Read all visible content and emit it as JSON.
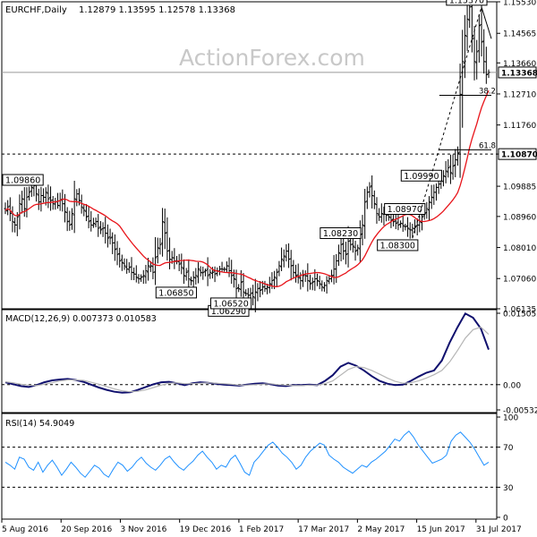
{
  "header": {
    "symbol": "EURCHF,Daily",
    "ohlc": "1.12879 1.13595 1.12578 1.13368",
    "watermark": "ActionForex.com"
  },
  "colors": {
    "bg": "#ffffff",
    "axis": "#000000",
    "price_bars": "#000000",
    "ma": "#e8141a",
    "macd_main": "#10106e",
    "macd_signal": "#b5b5b5",
    "rsi": "#1e90ff",
    "grid_dash": "#000000",
    "label_bg": "#ffffff"
  },
  "chart_data": [
    {
      "type": "line",
      "title": "EURCHF,Daily",
      "subtitle": "1.12879 1.13595 1.12578 1.13368",
      "x_ticks": [
        "5 Aug 2016",
        "20 Sep 2016",
        "3 Nov 2016",
        "19 Dec 2016",
        "1 Feb 2017",
        "17 Mar 2017",
        "2 May 2017",
        "15 Jun 2017",
        "31 Jul 2017"
      ],
      "y_ticks": [
        "1.15530",
        "1.14565",
        "1.13660",
        "1.12710",
        "1.11760",
        "1.10870",
        "1.09885",
        "1.08960",
        "1.08010",
        "1.07060",
        "1.06135"
      ],
      "ylim": [
        1.06135,
        1.1553
      ],
      "last_price_label": "1.13368",
      "level_label": "1.10870",
      "grid": false,
      "series": [
        {
          "kind": "ohlc-bars",
          "close": [
            1.0915,
            1.0925,
            1.0905,
            1.088,
            1.087,
            1.0895,
            1.0935,
            1.095,
            1.092,
            1.0955,
            1.097,
            1.0985,
            1.099,
            1.0965,
            1.094,
            1.096,
            1.0955,
            1.097,
            1.095,
            1.0945,
            1.0935,
            1.094,
            1.093,
            1.0945,
            1.0935,
            1.091,
            1.088,
            1.087,
            1.0905,
            1.095,
            1.0965,
            1.0945,
            1.0925,
            1.0915,
            1.0895,
            1.088,
            1.087,
            1.0875,
            1.088,
            1.086,
            1.0855,
            1.086,
            1.0845,
            1.083,
            1.083,
            1.0815,
            1.0795,
            1.078,
            1.076,
            1.0755,
            1.0745,
            1.0735,
            1.074,
            1.0725,
            1.072,
            1.071,
            1.0705,
            1.071,
            1.0715,
            1.073,
            1.0745,
            1.0745,
            1.0725,
            1.077,
            1.08,
            1.081,
            1.088,
            1.0845,
            1.079,
            1.0765,
            1.077,
            1.076,
            1.076,
            1.075,
            1.074,
            1.0715,
            1.0725,
            1.0705,
            1.07,
            1.071,
            1.0715,
            1.0735,
            1.0725,
            1.0725,
            1.073,
            1.0715,
            1.0725,
            1.0725,
            1.072,
            1.073,
            1.0735,
            1.0735,
            1.0735,
            1.0745,
            1.073,
            1.0715,
            1.0705,
            1.0675,
            1.0675,
            1.0695,
            1.0665,
            1.066,
            1.0655,
            1.066,
            1.065,
            1.0665,
            1.0675,
            1.067,
            1.068,
            1.0675,
            1.068,
            1.069,
            1.07,
            1.071,
            1.0725,
            1.0745,
            1.0765,
            1.0775,
            1.079,
            1.0765,
            1.0745,
            1.0725,
            1.0715,
            1.071,
            1.07,
            1.0715,
            1.0715,
            1.07,
            1.069,
            1.0695,
            1.0705,
            1.07,
            1.069,
            1.068,
            1.0685,
            1.07,
            1.0705,
            1.0715,
            1.0735,
            1.076,
            1.0785,
            1.081,
            1.079,
            1.078,
            1.082,
            1.081,
            1.0805,
            1.079,
            1.08,
            1.084,
            1.087,
            1.094,
            1.097,
            1.0986,
            1.096,
            1.0935,
            1.0905,
            1.0895,
            1.0905,
            1.091,
            1.09,
            1.0895,
            1.0885,
            1.088,
            1.0875,
            1.087,
            1.0875,
            1.0868,
            1.0865,
            1.086,
            1.0855,
            1.086,
            1.0865,
            1.087,
            1.088,
            1.0895,
            1.0905,
            1.092,
            1.094,
            1.0955,
            1.097,
            1.0985,
            1.0995,
            1.1005,
            1.102,
            1.1035,
            1.1045,
            1.103,
            1.105,
            1.107,
            1.109,
            1.127,
            1.137,
            1.145,
            1.15,
            1.1537,
            1.144,
            1.137,
            1.14,
            1.148,
            1.143,
            1.137,
            1.133,
            1.1337
          ]
        },
        {
          "kind": "moving-average"
        }
      ],
      "annotations": [
        {
          "label": "1.15370",
          "type": "high"
        },
        {
          "label": "1.09990",
          "type": "high"
        },
        {
          "label": "1.08970",
          "type": "high"
        },
        {
          "label": "1.08230",
          "type": "high"
        },
        {
          "label": "1.09860",
          "type": "high"
        },
        {
          "label": "1.06850",
          "type": "low"
        },
        {
          "label": "1.06290",
          "type": "low"
        },
        {
          "label": "1.06520",
          "type": "low"
        },
        {
          "label": "1.08300",
          "type": "low"
        },
        {
          "label": "38.2",
          "type": "fib"
        },
        {
          "label": "61.8",
          "type": "fib"
        }
      ]
    },
    {
      "type": "line",
      "title": "MACD(12,26,9) 0.007373 0.010583",
      "y_ticks": [
        "0.015052",
        "0.00",
        "-0.005321"
      ],
      "ylim": [
        -0.005321,
        0.015052
      ],
      "series": [
        {
          "kind": "macd",
          "values": [
            0.0005,
            0.0001,
            -0.0003,
            -0.0005,
            -0.0001,
            0.0005,
            0.0009,
            0.0011,
            0.0012,
            0.001,
            0.0006,
            0.0,
            -0.0006,
            -0.0011,
            -0.0015,
            -0.0017,
            -0.0016,
            -0.0011,
            -0.0005,
            0.0001,
            0.0005,
            0.0006,
            0.0003,
            -0.0001,
            0.0003,
            0.0005,
            0.0004,
            0.0002,
            0.0,
            -0.0001,
            -0.0002,
            0.0,
            0.0002,
            0.0003,
            0.0001,
            -0.0002,
            -0.0003,
            -0.0001,
            -0.0001,
            0.0,
            -0.0001,
            0.0008,
            0.002,
            0.0038,
            0.0046,
            0.004,
            0.003,
            0.0018,
            0.0008,
            0.0002,
            -0.0001,
            0.0,
            0.0008,
            0.0017,
            0.0025,
            0.003,
            0.0051,
            0.0089,
            0.0121,
            0.015,
            0.0141,
            0.0118,
            0.0074
          ]
        },
        {
          "kind": "signal",
          "values": [
            0.0006,
            0.0004,
            0.0001,
            -0.0001,
            -0.0002,
            0.0001,
            0.0004,
            0.0008,
            0.001,
            0.001,
            0.0009,
            0.0005,
            0.0001,
            -0.0004,
            -0.0009,
            -0.0013,
            -0.0015,
            -0.0014,
            -0.0011,
            -0.0006,
            -0.0001,
            0.0003,
            0.0004,
            0.0002,
            0.0002,
            0.0003,
            0.0004,
            0.0003,
            0.0002,
            0.0001,
            -0.0001,
            -0.0001,
            0.0,
            0.0001,
            0.0002,
            0.0,
            -0.0001,
            -0.0002,
            -0.0002,
            -0.0001,
            -0.0001,
            0.0002,
            0.0008,
            0.002,
            0.0032,
            0.0038,
            0.0036,
            0.003,
            0.0022,
            0.0014,
            0.0007,
            0.0003,
            0.0004,
            0.0008,
            0.0014,
            0.0021,
            0.003,
            0.0048,
            0.0072,
            0.0098,
            0.0116,
            0.0121,
            0.0106
          ]
        }
      ]
    },
    {
      "type": "line",
      "title": "RSI(14) 54.9049",
      "y_ticks": [
        "100",
        "70",
        "30",
        "0"
      ],
      "ylim": [
        0,
        100
      ],
      "series": [
        {
          "kind": "rsi",
          "values": [
            55,
            52,
            48,
            60,
            58,
            50,
            47,
            55,
            45,
            52,
            57,
            50,
            42,
            48,
            55,
            50,
            44,
            40,
            46,
            52,
            49,
            43,
            40,
            48,
            55,
            52,
            46,
            50,
            56,
            60,
            54,
            50,
            47,
            52,
            58,
            61,
            55,
            50,
            47,
            52,
            56,
            62,
            66,
            60,
            55,
            48,
            52,
            50,
            58,
            62,
            54,
            45,
            42,
            55,
            60,
            66,
            72,
            75,
            70,
            64,
            60,
            55,
            48,
            52,
            60,
            66,
            70,
            74,
            72,
            62,
            58,
            55,
            50,
            47,
            44,
            48,
            52,
            50,
            55,
            58,
            62,
            66,
            72,
            78,
            76,
            82,
            86,
            80,
            72,
            66,
            60,
            54,
            56,
            58,
            62,
            76,
            82,
            85,
            80,
            75,
            68,
            60,
            52,
            55
          ]
        }
      ]
    }
  ],
  "x_axis": {
    "labels": [
      "5 Aug 2016",
      "20 Sep 2016",
      "3 Nov 2016",
      "19 Dec 2016",
      "1 Feb 2017",
      "17 Mar 2017",
      "2 May 2017",
      "15 Jun 2017",
      "31 Jul 2017"
    ]
  }
}
